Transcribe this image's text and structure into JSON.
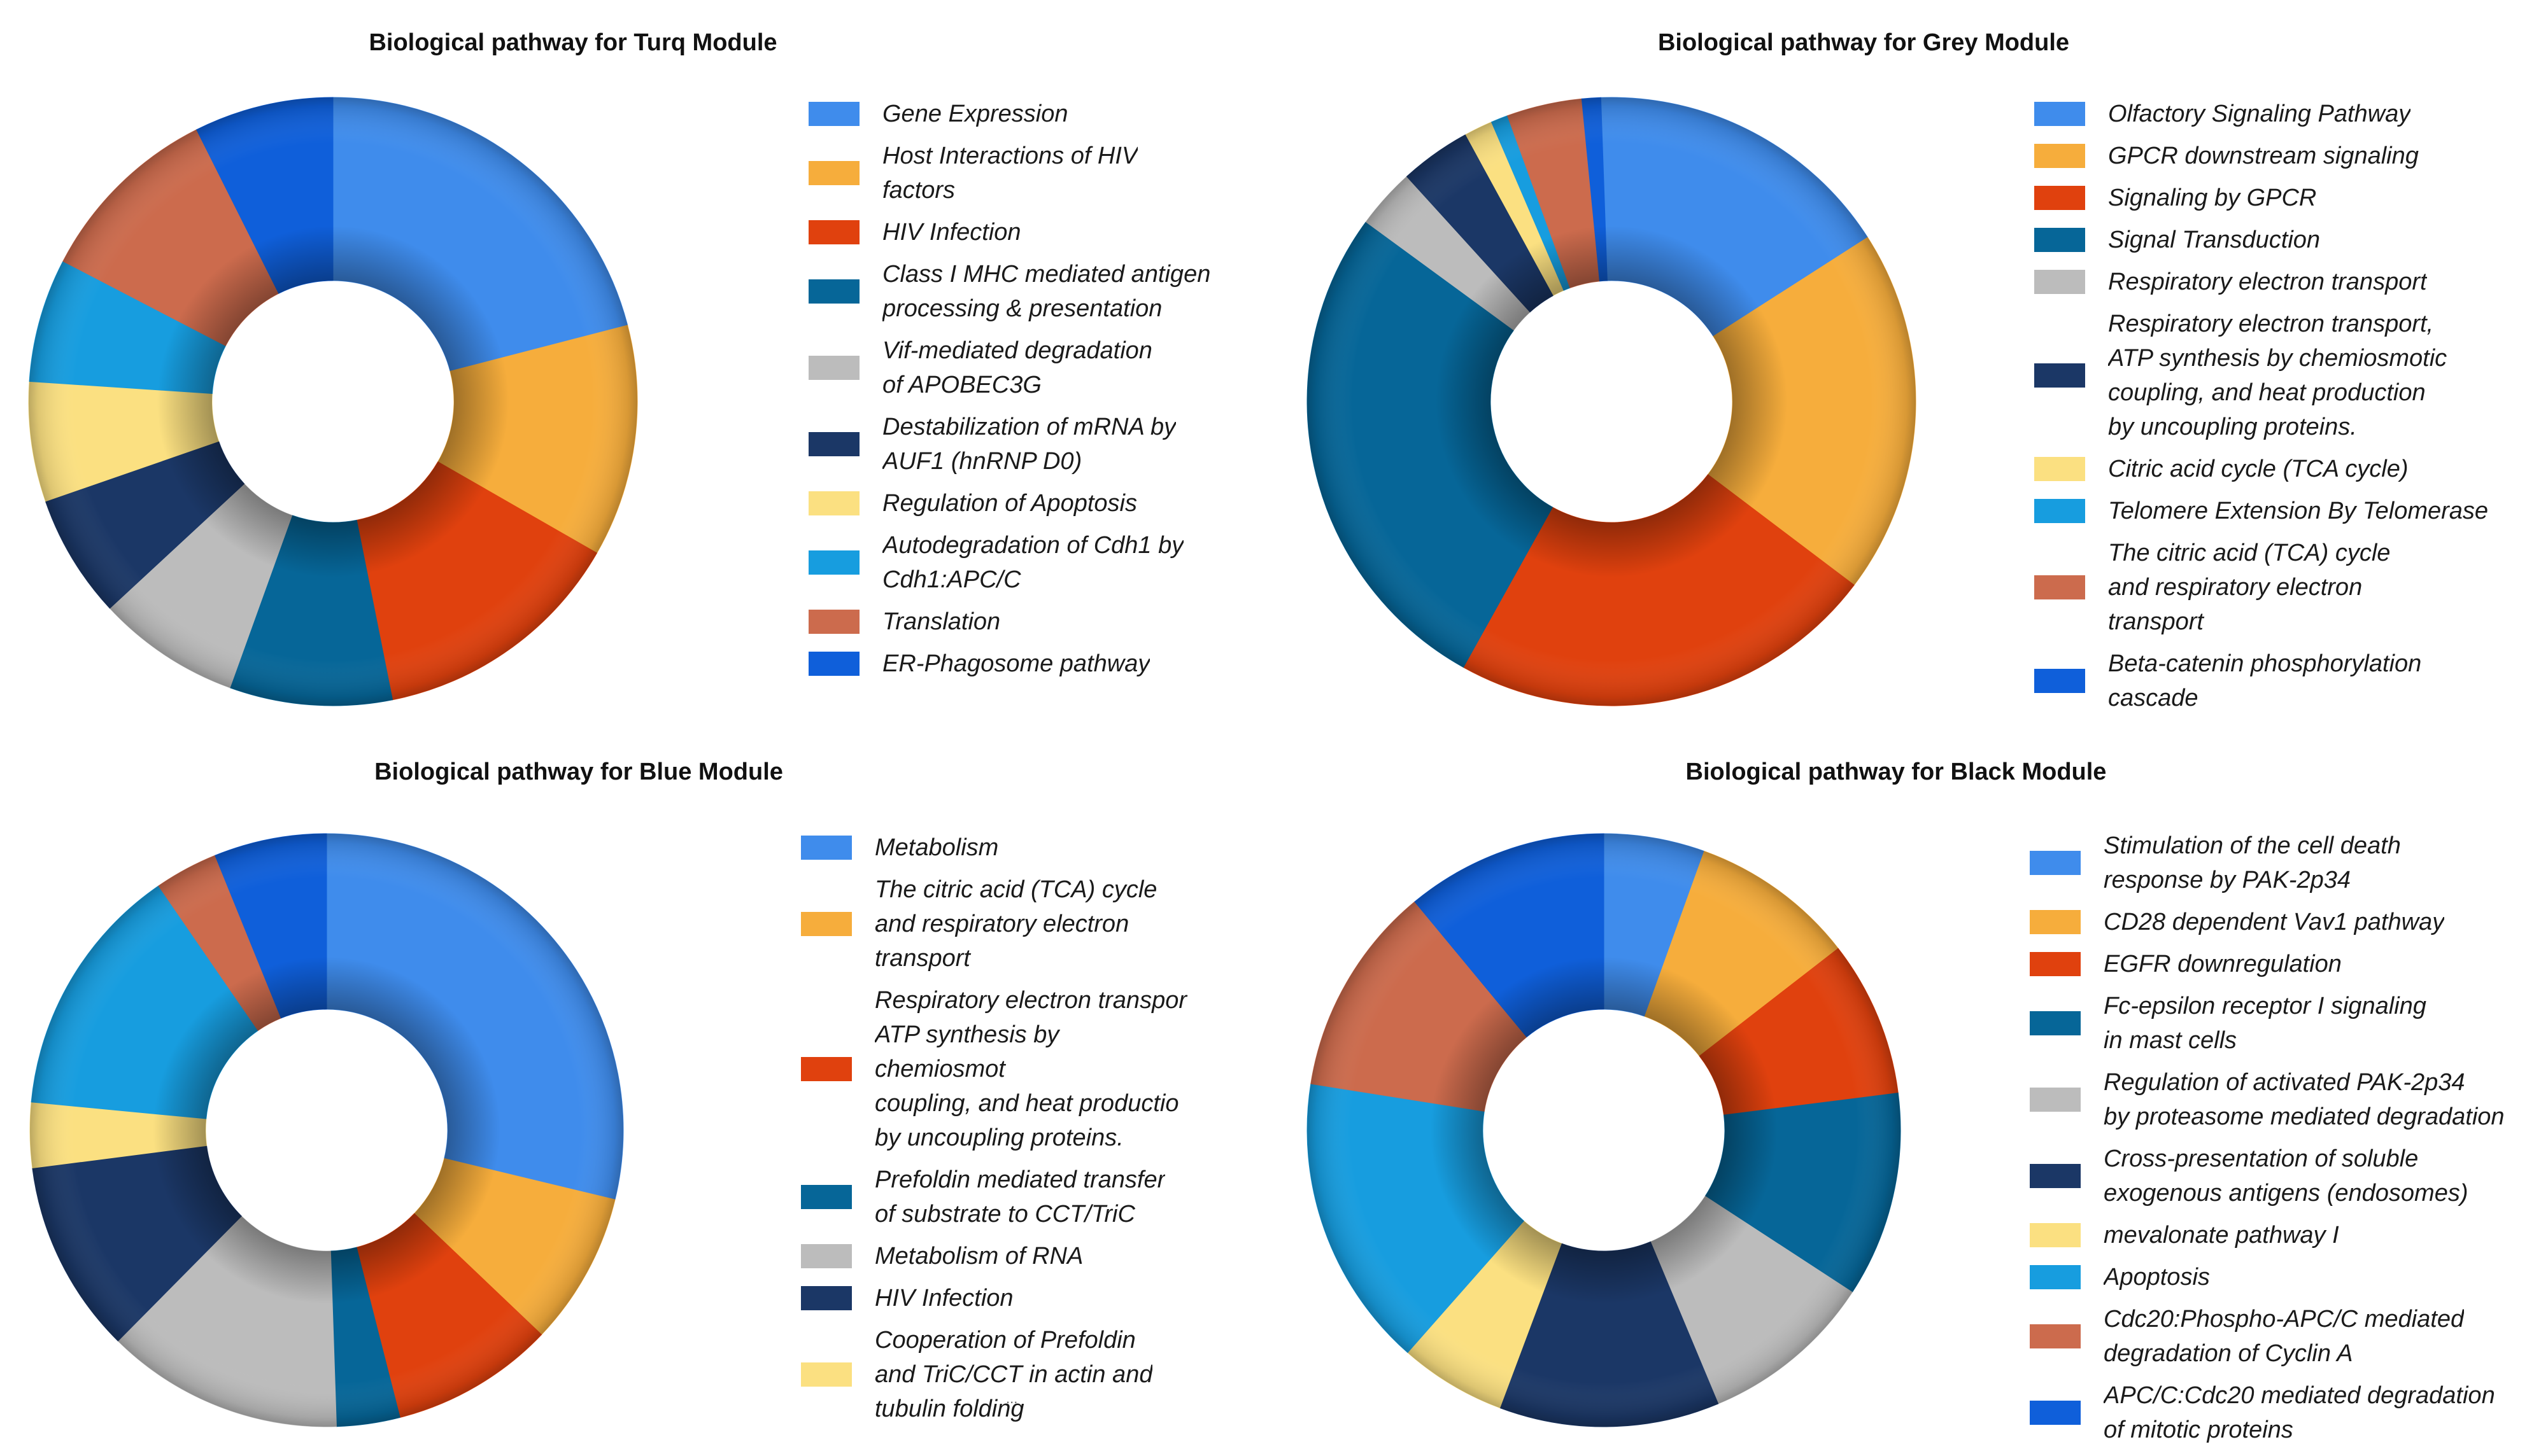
{
  "chart_data": [
    {
      "type": "pie",
      "title": "Biological pathway for Turq Module",
      "categories": [
        "Gene Expression",
        "Host Interactions of HIV\nfactors",
        "HIV Infection",
        "Class I MHC mediated antigen\nprocessing & presentation",
        "Vif-mediated degradation\nof APOBEC3G",
        "Destabilization of mRNA by\nAUF1 (hnRNP D0)",
        "Regulation of Apoptosis",
        "Autodegradation of Cdh1 by\nCdh1:APC/C",
        "Translation",
        "ER-Phagosome pathway"
      ],
      "values": [
        20.4,
        12.0,
        13.2,
        8.4,
        7.4,
        6.4,
        6.2,
        6.4,
        9.7,
        7.2
      ],
      "colors": [
        "#3f8cec",
        "#f6ad3c",
        "#e0410e",
        "#066698",
        "#bcbcbc",
        "#1b3766",
        "#fbe081",
        "#179ddf",
        "#cc6b4d",
        "#0f5fda"
      ],
      "start_angle": 90
    },
    {
      "type": "pie",
      "title": "Biological pathway for Grey Module",
      "categories": [
        "Olfactory Signaling Pathway",
        "GPCR downstream signaling",
        "Signaling by GPCR",
        "Signal Transduction",
        "Respiratory electron transport",
        "Respiratory electron transport,\nATP synthesis by chemiosmotic\ncoupling, and heat production\nby uncoupling proteins.",
        "Citric acid cycle (TCA cycle)",
        "Telomere Extension By Telomerase",
        "The citric acid (TCA) cycle\nand respiratory electron\ntransport",
        "Beta-catenin phosphorylation\ncascade"
      ],
      "values": [
        16.5,
        19.4,
        22.8,
        27.0,
        3.2,
        3.8,
        1.5,
        0.9,
        4.0,
        1.0
      ],
      "colors": [
        "#3f8cec",
        "#f6ad3c",
        "#e0410e",
        "#066698",
        "#bcbcbc",
        "#1b3766",
        "#fbe081",
        "#179ddf",
        "#cc6b4d",
        "#0f5fda"
      ],
      "start_angle": 92
    },
    {
      "type": "pie",
      "title": "Biological pathway for Blue Module",
      "categories": [
        "Metabolism",
        "The citric acid (TCA) cycle\nand respiratory electron\ntransport",
        "Respiratory electron transpor\nATP synthesis by chemiosmot\ncoupling, and heat productio\nby uncoupling proteins.",
        "Prefoldin mediated transfer\nof substrate to CCT/TriC",
        "Metabolism of RNA",
        "HIV Infection",
        "Cooperation of Prefoldin\nand TriC/CCT in actin and\ntubulin folding",
        "",
        "",
        ""
      ],
      "values": [
        30.0,
        8.7,
        9.3,
        3.6,
        13.5,
        11.0,
        3.7,
        14.5,
        3.6,
        6.4
      ],
      "colors": [
        "#3f8cec",
        "#f6ad3c",
        "#e0410e",
        "#066698",
        "#bcbcbc",
        "#1b3766",
        "#fbe081",
        "#179ddf",
        "#cc6b4d",
        "#0f5fda"
      ],
      "start_angle": 90
    },
    {
      "type": "pie",
      "title": "Biological pathway for Black Module",
      "categories": [
        "Stimulation of the cell death\nresponse by PAK-2p34",
        "CD28 dependent Vav1 pathway",
        "EGFR downregulation",
        "Fc-epsilon receptor I signaling\nin mast cells",
        "Regulation of activated PAK-2p34\nby proteasome mediated degradation",
        "Cross-presentation of soluble\nexogenous antigens (endosomes)",
        "mevalonate pathway I",
        "Apoptosis",
        "Cdc20:Phospho-APC/C mediated\ndegradation of Cyclin A",
        "APC/C:Cdc20 mediated degradation\nof mitotic proteins"
      ],
      "values": [
        5.5,
        9.0,
        8.5,
        11.2,
        9.5,
        12.0,
        5.8,
        16.0,
        11.5,
        11.0
      ],
      "colors": [
        "#3f8cec",
        "#f6ad3c",
        "#e0410e",
        "#066698",
        "#bcbcbc",
        "#1b3766",
        "#fbe081",
        "#179ddf",
        "#cc6b4d",
        "#0f5fda"
      ],
      "start_angle": 90
    }
  ],
  "footnote": "..."
}
